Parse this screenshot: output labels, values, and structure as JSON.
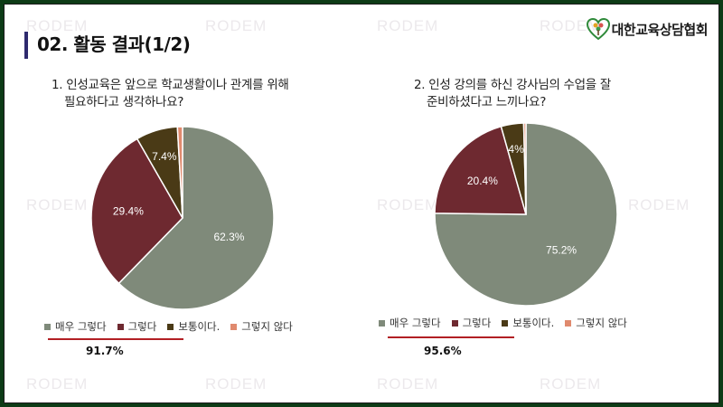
{
  "header": {
    "title": "02. 활동 결과(1/2)",
    "logo_text": "대한교육상담협회",
    "logo_icon": "tree-heart-icon"
  },
  "watermark": "RODEM",
  "colors": {
    "very_much": "#7f8a7a",
    "yes": "#6e2930",
    "neutral": "#4a3a16",
    "not": "#e08a6e",
    "accent_line": "#b21f24",
    "title_bar": "#2e2a6e"
  },
  "charts": [
    {
      "question_line1": "1. 인성교육은 앞으로 학교생활이나 관계를 위해",
      "question_line2": "필요하다고 생각하나요?",
      "total_label": "91.7%"
    },
    {
      "question_line1": "2. 인성 강의를 하신 강사님의 수업을 잘",
      "question_line2": "준비하셨다고 느끼나요?",
      "total_label": "95.6%"
    }
  ],
  "chart_data": [
    {
      "type": "pie",
      "categories": [
        "매우 그렇다",
        "그렇다",
        "보통이다.",
        "그렇지 않다"
      ],
      "values": [
        62.3,
        29.4,
        7.4,
        0.9
      ],
      "labels": [
        "62.3%",
        "29.4%",
        "7.4%",
        ""
      ],
      "legend_position": "bottom"
    },
    {
      "type": "pie",
      "categories": [
        "매우 그렇다",
        "그렇다",
        "보통이다.",
        "그렇지 않다"
      ],
      "values": [
        75.2,
        20.4,
        4,
        0.4
      ],
      "labels": [
        "75.2%",
        "20.4%",
        "4%",
        ""
      ],
      "legend_position": "bottom"
    }
  ]
}
